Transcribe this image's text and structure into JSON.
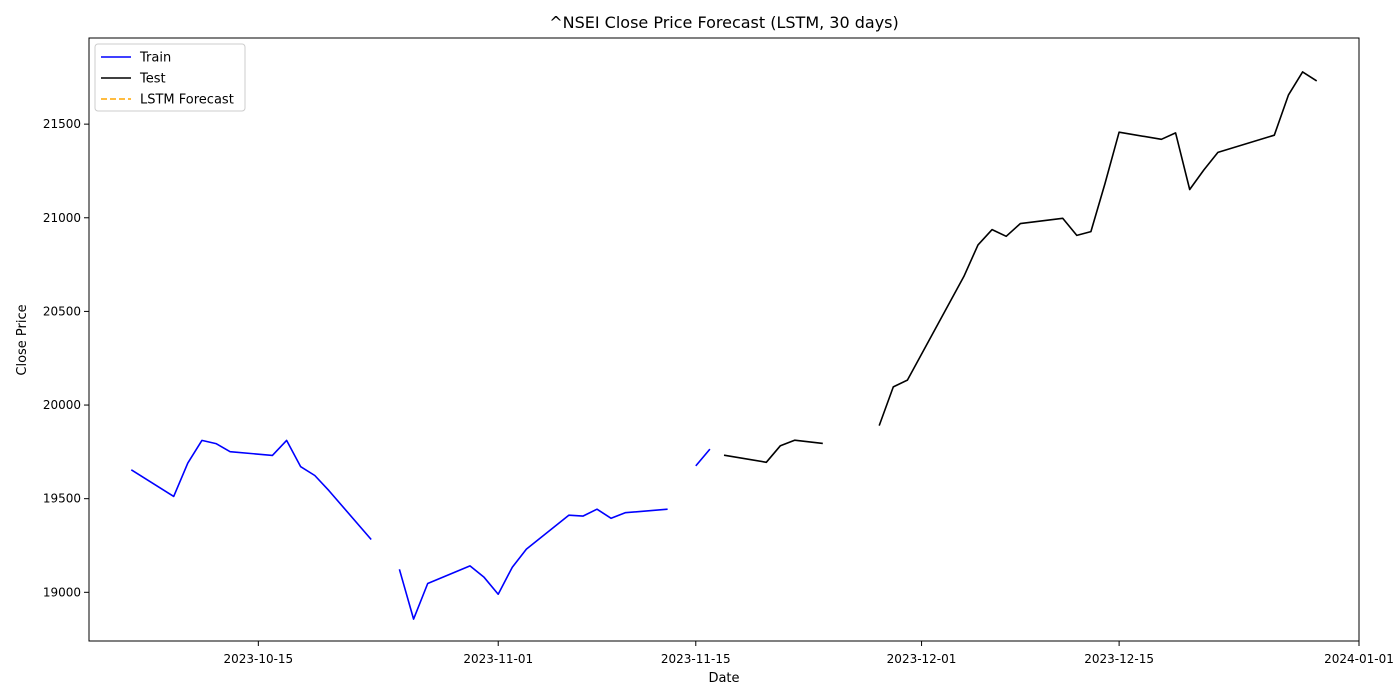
{
  "chart_data": {
    "type": "line",
    "title": "^NSEI Close Price Forecast (LSTM, 30 days)",
    "xlabel": "Date",
    "ylabel": "Close Price",
    "xlim": [
      "2023-10-03",
      "2024-01-01"
    ],
    "ylim": [
      18740,
      21960
    ],
    "x_ticks": [
      "2023-10-15",
      "2023-11-01",
      "2023-11-15",
      "2023-12-01",
      "2023-12-15",
      "2024-01-01"
    ],
    "y_ticks": [
      19000,
      19500,
      20000,
      20500,
      21000,
      21500
    ],
    "legend": {
      "position": "top-left"
    },
    "grid": false,
    "series": [
      {
        "name": "Train",
        "color": "#0000ff",
        "style": "solid",
        "segments": [
          [
            [
              "2023-10-06",
              19654
            ],
            [
              "2023-10-09",
              19512
            ],
            [
              "2023-10-10",
              19690
            ],
            [
              "2023-10-11",
              19811
            ],
            [
              "2023-10-12",
              19794
            ],
            [
              "2023-10-13",
              19751
            ],
            [
              "2023-10-16",
              19731
            ],
            [
              "2023-10-17",
              19811
            ],
            [
              "2023-10-18",
              19671
            ],
            [
              "2023-10-19",
              19624
            ],
            [
              "2023-10-20",
              19543
            ],
            [
              "2023-10-23",
              19282
            ]
          ],
          [
            [
              "2023-10-25",
              19123
            ],
            [
              "2023-10-26",
              18857
            ],
            [
              "2023-10-27",
              19047
            ],
            [
              "2023-10-30",
              19141
            ],
            [
              "2023-10-31",
              19080
            ],
            [
              "2023-11-01",
              18990
            ],
            [
              "2023-11-02",
              19134
            ],
            [
              "2023-11-03",
              19231
            ],
            [
              "2023-11-06",
              19412
            ],
            [
              "2023-11-07",
              19407
            ],
            [
              "2023-11-08",
              19444
            ],
            [
              "2023-11-09",
              19395
            ],
            [
              "2023-11-10",
              19425
            ],
            [
              "2023-11-13",
              19444
            ]
          ],
          [
            [
              "2023-11-15",
              19675
            ],
            [
              "2023-11-16",
              19765
            ]
          ]
        ]
      },
      {
        "name": "Test",
        "color": "#000000",
        "style": "solid",
        "segments": [
          [
            [
              "2023-11-17",
              19732
            ],
            [
              "2023-11-20",
              19694
            ],
            [
              "2023-11-21",
              19783
            ],
            [
              "2023-11-22",
              19812
            ],
            [
              "2023-11-24",
              19795
            ]
          ],
          [
            [
              "2023-11-28",
              19890
            ],
            [
              "2023-11-29",
              20097
            ],
            [
              "2023-11-30",
              20133
            ],
            [
              "2023-12-04",
              20687
            ],
            [
              "2023-12-05",
              20855
            ],
            [
              "2023-12-06",
              20937
            ],
            [
              "2023-12-07",
              20901
            ],
            [
              "2023-12-08",
              20969
            ],
            [
              "2023-12-11",
              20997
            ],
            [
              "2023-12-12",
              20906
            ],
            [
              "2023-12-13",
              20926
            ],
            [
              "2023-12-14",
              21183
            ],
            [
              "2023-12-15",
              21457
            ],
            [
              "2023-12-18",
              21419
            ],
            [
              "2023-12-19",
              21453
            ],
            [
              "2023-12-20",
              21151
            ],
            [
              "2023-12-21",
              21255
            ],
            [
              "2023-12-22",
              21349
            ],
            [
              "2023-12-26",
              21441
            ],
            [
              "2023-12-27",
              21655
            ],
            [
              "2023-12-28",
              21779
            ],
            [
              "2023-12-29",
              21731
            ]
          ]
        ]
      },
      {
        "name": "LSTM Forecast",
        "color": "#ffa500",
        "style": "dashed",
        "segments": []
      }
    ]
  }
}
